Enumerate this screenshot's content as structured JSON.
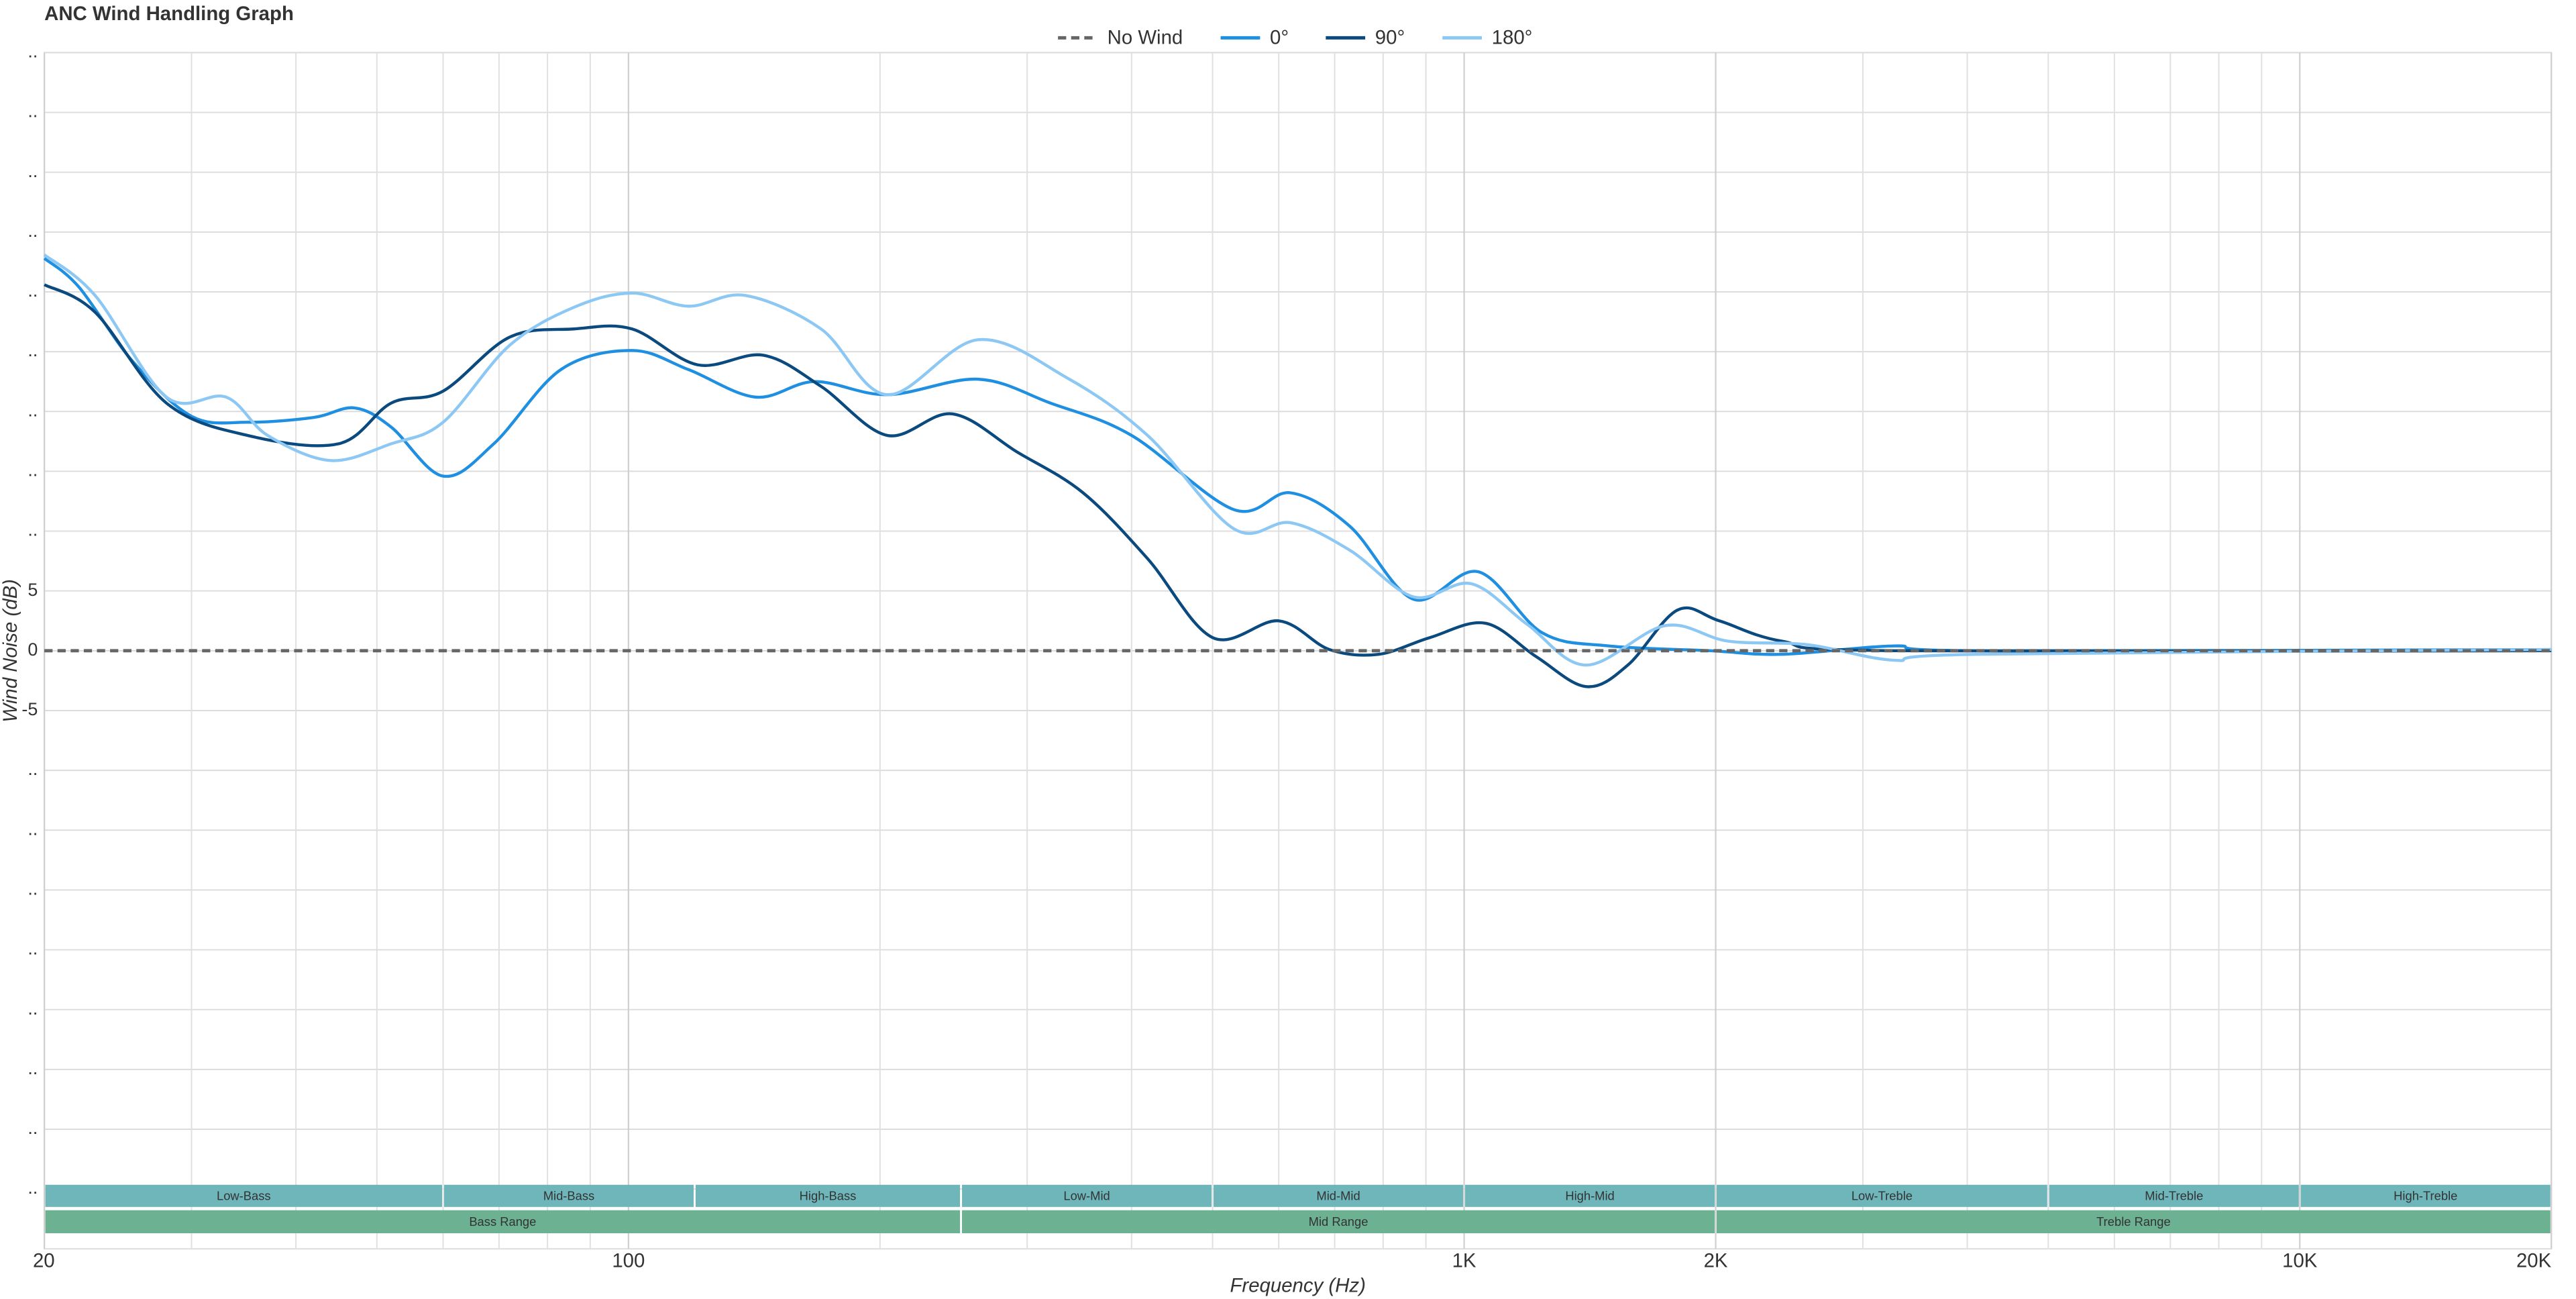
{
  "chart_data": {
    "type": "line",
    "title": "ANC Wind Handling Graph",
    "xlabel": "Frequency (Hz)",
    "ylabel": "Wind Noise (dB)",
    "xscale": "log",
    "grid": true,
    "legend": "top",
    "xlim": [
      20,
      20000
    ],
    "ylim": [
      -50,
      50
    ],
    "xticks": [
      20,
      100,
      {
        "value": 1000,
        "label": "1K"
      },
      {
        "value": 2000,
        "label": "2K"
      },
      {
        "value": 10000,
        "label": "10K"
      },
      {
        "value": 20000,
        "label": "20K"
      }
    ],
    "xgrid_minor": [
      30,
      40,
      50,
      60,
      70,
      80,
      90,
      200,
      300,
      400,
      500,
      600,
      700,
      800,
      900,
      3000,
      4000,
      5000,
      6000,
      7000,
      8000,
      9000
    ],
    "yticks": [
      {
        "value": 50,
        "label": ".."
      },
      {
        "value": 45,
        "label": ".."
      },
      {
        "value": 40,
        "label": ".."
      },
      {
        "value": 35,
        "label": ".."
      },
      {
        "value": 30,
        "label": ".."
      },
      {
        "value": 25,
        "label": ".."
      },
      {
        "value": 20,
        "label": ".."
      },
      {
        "value": 15,
        "label": ".."
      },
      {
        "value": 10,
        "label": ".."
      },
      5,
      0,
      -5,
      {
        "value": -10,
        "label": ".."
      },
      {
        "value": -15,
        "label": ".."
      },
      {
        "value": -20,
        "label": ".."
      },
      {
        "value": -25,
        "label": ".."
      },
      {
        "value": -30,
        "label": ".."
      },
      {
        "value": -35,
        "label": ".."
      },
      {
        "value": -40,
        "label": ".."
      },
      {
        "value": -45,
        "label": ".."
      }
    ],
    "bands": [
      {
        "name": "Low-Bass",
        "start": 20,
        "end": 60
      },
      {
        "name": "Mid-Bass",
        "start": 60,
        "end": 120
      },
      {
        "name": "High-Bass",
        "start": 120,
        "end": 250
      },
      {
        "name": "Low-Mid",
        "start": 250,
        "end": 500
      },
      {
        "name": "Mid-Mid",
        "start": 500,
        "end": 1000
      },
      {
        "name": "High-Mid",
        "start": 1000,
        "end": 2000
      },
      {
        "name": "Low-Treble",
        "start": 2000,
        "end": 5000
      },
      {
        "name": "Mid-Treble",
        "start": 5000,
        "end": 10000
      },
      {
        "name": "High-Treble",
        "start": 10000,
        "end": 20000
      }
    ],
    "ranges": [
      {
        "name": "Bass Range",
        "start": 20,
        "end": 250
      },
      {
        "name": "Mid Range",
        "start": 250,
        "end": 2000
      },
      {
        "name": "Treble Range",
        "start": 2000,
        "end": 20000
      }
    ],
    "band_color": "#6fb6bb",
    "range_color": "#6bb192",
    "series": [
      {
        "name": "No Wind",
        "color": "#666666",
        "dash": true,
        "x": [
          20,
          20000
        ],
        "values": [
          0,
          0
        ]
      },
      {
        "name": "0°",
        "color": "#1e8fe1",
        "x": [
          20,
          22,
          25.5,
          30,
          35,
          42,
          47,
          52,
          60,
          69,
          83,
          101,
          118,
          142,
          167,
          204,
          262,
          320,
          400,
          530,
          620,
          730,
          870,
          1040,
          1240,
          1490,
          1970,
          2400,
          3270,
          4100,
          20000
        ],
        "values": [
          32.8,
          30.4,
          24.2,
          19.6,
          19.1,
          19.5,
          20.3,
          18.7,
          14.6,
          17.3,
          23.5,
          25.1,
          23.5,
          21.2,
          22.5,
          21.4,
          22.7,
          20.7,
          18,
          11.8,
          13.2,
          10.4,
          4.3,
          6.6,
          1.5,
          0.4,
          0,
          -0.3,
          0.4,
          0,
          0.1
        ]
      },
      {
        "name": "90°",
        "color": "#0b4a7e",
        "x": [
          20,
          23,
          28,
          35,
          45,
          52,
          60,
          72,
          86,
          101,
          121,
          145,
          170,
          204,
          244,
          292,
          350,
          418,
          500,
          600,
          690,
          790,
          910,
          1060,
          1220,
          1400,
          1570,
          1800,
          2020,
          2400,
          3270,
          20000
        ],
        "values": [
          30.6,
          28.3,
          20.7,
          18,
          17.3,
          20.7,
          21.7,
          26.2,
          26.9,
          26.9,
          23.9,
          24.7,
          22.1,
          18,
          19.8,
          16.6,
          13.2,
          7.7,
          1.1,
          2.5,
          0.1,
          -0.3,
          1.1,
          2.3,
          -0.5,
          -3,
          -1.2,
          3.4,
          2.5,
          0.8,
          0,
          0
        ]
      },
      {
        "name": "180°",
        "color": "#8cc8f3",
        "x": [
          20,
          23,
          28,
          33,
          37,
          44,
          52,
          60,
          72,
          86,
          101,
          118,
          138,
          170,
          204,
          262,
          335,
          418,
          530,
          620,
          730,
          870,
          1020,
          1190,
          1400,
          1740,
          2070,
          2580,
          3270,
          4100,
          20000
        ],
        "values": [
          33.1,
          29.7,
          21.2,
          21.2,
          18,
          15.9,
          17.3,
          19.1,
          25.5,
          28.7,
          29.9,
          28.8,
          29.7,
          26.9,
          21.4,
          26,
          22.8,
          18,
          10.2,
          10.7,
          8.4,
          4.5,
          5.6,
          2.2,
          -1.2,
          2.1,
          0.8,
          0.5,
          -0.8,
          -0.3,
          0.1
        ]
      }
    ]
  }
}
